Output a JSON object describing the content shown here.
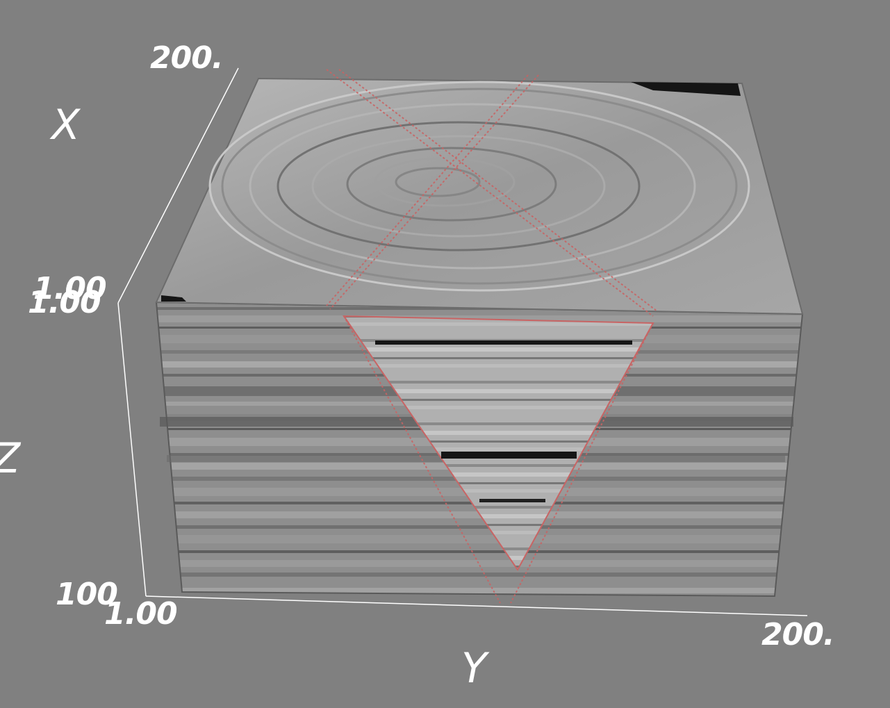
{
  "scene": {
    "background": "#808080",
    "line_color": "#ffffff",
    "slice_outline_color": "#c86464",
    "axes": {
      "x": {
        "title": "X",
        "min_label": "1.00",
        "max_label": "200."
      },
      "y": {
        "title": "Y",
        "min_label": "1.00",
        "max_label": "200."
      },
      "z": {
        "title": "Z",
        "min_label": "1.00",
        "max_label": "100"
      }
    }
  }
}
